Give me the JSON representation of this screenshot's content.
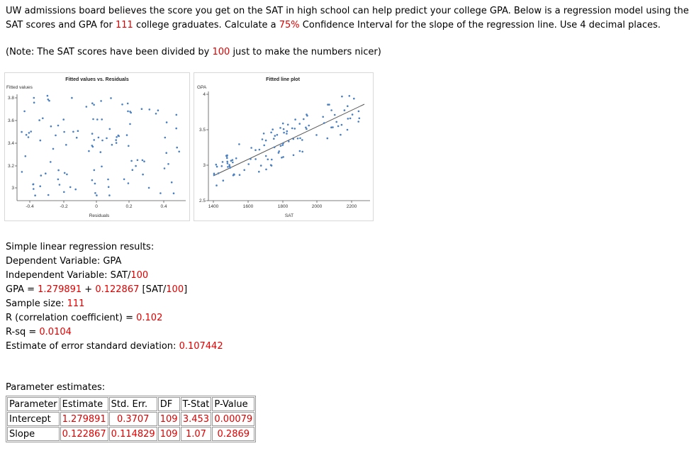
{
  "problem": {
    "p1": "UW admissions board believes the score you get on the SAT in high school can help predict your college GPA. Below is a regression model using the SAT scores and GPA for ",
    "n": "111",
    "p2": " college graduates. Calculate a ",
    "conf": "75%",
    "p3": " Confidence Interval for the slope of the regression line. Use 4 decimal places."
  },
  "note": {
    "p1": "(Note: The SAT scores have been divided by ",
    "div": "100",
    "p2": " just to make the numbers nicer)"
  },
  "colors": {
    "red": "#e00000",
    "dot": "#4a7fc0"
  },
  "resid_plot": {
    "title": "Fitted values vs. Residuals",
    "ylabel": "Fitted values",
    "xlabel": "Residuals",
    "xticks": [
      "-0.4",
      "-0.2",
      "0",
      "0.2",
      "0.4"
    ],
    "yticks": [
      "3.8",
      "3.6",
      "3.4",
      "3.2",
      "3"
    ]
  },
  "fit_plot": {
    "title": "Fitted line plot",
    "ylabel": "GPA",
    "xlabel": "SAT",
    "xticks": [
      "1400",
      "1600",
      "1800",
      "2000",
      "2200"
    ],
    "yticks": [
      "4",
      "3.5",
      "3",
      "2.5"
    ]
  },
  "results": {
    "heading": "Simple linear regression results:",
    "dep": "Dependent Variable: GPA",
    "indep_pre": "Independent Variable: SAT/",
    "indep_num": "100",
    "eq_pre": "GPA = ",
    "eq_int": "1.279891",
    "eq_mid": " + ",
    "eq_slope": "0.122867",
    "eq_post": " [SAT/",
    "eq_num": "100",
    "eq_end": "]",
    "n_pre": "Sample size: ",
    "n": "111",
    "r_pre": "R (correlation coefficient) = ",
    "r": "0.102",
    "rsq_pre": "R-sq = ",
    "rsq": "0.0104",
    "sd_pre": "Estimate of error standard deviation: ",
    "sd": "0.107442"
  },
  "params": {
    "title": "Parameter estimates:",
    "headers": [
      "Parameter",
      "Estimate",
      "Std. Err.",
      "DF",
      "T-Stat",
      "P-Value"
    ],
    "rows": [
      [
        "Intercept",
        "1.279891",
        "0.3707",
        "109",
        "3.453",
        "0.00079"
      ],
      [
        "Slope",
        "0.122867",
        "0.114829",
        "109",
        "1.07",
        "0.2869"
      ]
    ]
  }
}
